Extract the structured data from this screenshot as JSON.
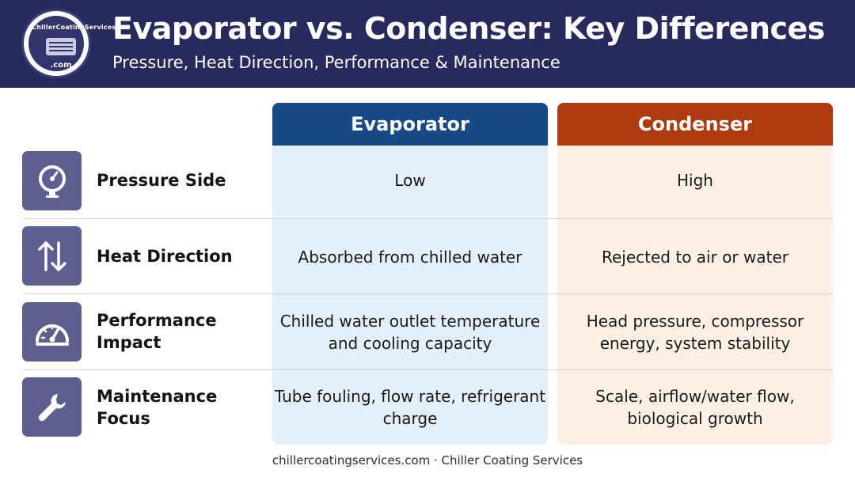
{
  "header": {
    "title": "Evaporator vs. Condenser: Key Differences",
    "subtitle": "Pressure, Heat Direction, Performance & Maintenance",
    "logo_text": "ChillerCoatingServices",
    "logo_suffix": ".com"
  },
  "columns": {
    "evaporator": "Evaporator",
    "condenser": "Condenser"
  },
  "rows": [
    {
      "icon": "pressure-gauge-icon",
      "label": "Pressure Side",
      "evaporator": "Low",
      "condenser": "High"
    },
    {
      "icon": "up-down-arrows-icon",
      "label": "Heat Direction",
      "evaporator": "Absorbed from chilled water",
      "condenser": "Rejected to air or water"
    },
    {
      "icon": "speedometer-icon",
      "label": "Performance Impact",
      "evaporator": "Chilled water outlet temperature and cooling capacity",
      "condenser": "Head pressure, compressor energy, system stability"
    },
    {
      "icon": "wrench-icon",
      "label": "Maintenance Focus",
      "evaporator": "Tube fouling, flow rate, refrigerant charge",
      "condenser": "Scale, airflow/water flow, biological growth"
    }
  ],
  "footer": "chillercoatingservices.com · Chiller Coating Services",
  "colors": {
    "header_bg": "#262a5c",
    "evaporator_header": "#174a85",
    "evaporator_bg": "#e3eff9",
    "condenser_header": "#ad3b0f",
    "condenser_bg": "#fdf1e6",
    "icon_bg": "#5f5f8f"
  }
}
